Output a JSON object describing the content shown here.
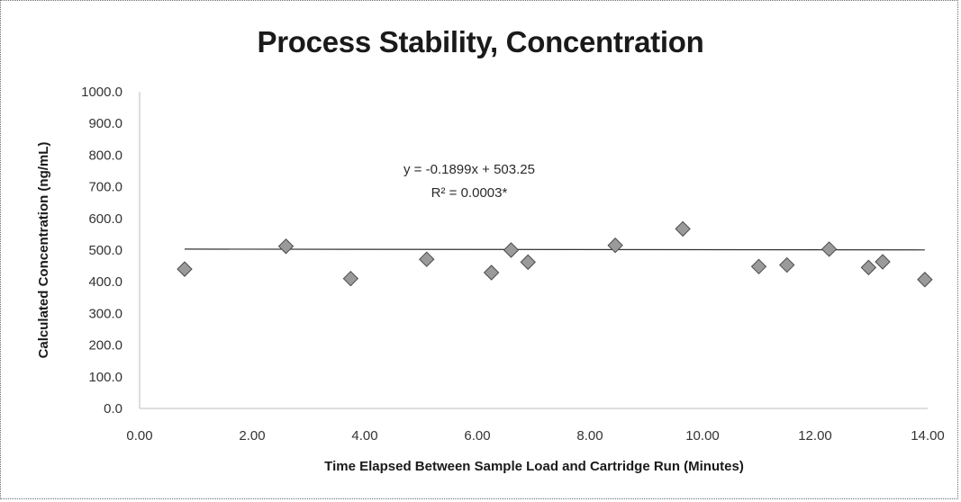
{
  "chart_data": {
    "type": "scatter",
    "title": "Process Stability, Concentration",
    "xlabel": "Time Elapsed Between Sample Load and Cartridge Run (Minutes)",
    "ylabel": "Calculated Concentration (ng/mL)",
    "xlim": [
      0,
      14
    ],
    "ylim": [
      0,
      1000
    ],
    "x_ticks": [
      "0.00",
      "2.00",
      "4.00",
      "6.00",
      "8.00",
      "10.00",
      "12.00",
      "14.00"
    ],
    "y_ticks": [
      "0.0",
      "100.0",
      "200.0",
      "300.0",
      "400.0",
      "500.0",
      "600.0",
      "700.0",
      "800.0",
      "900.0",
      "1000.0"
    ],
    "grid": false,
    "series": [
      {
        "points": [
          {
            "x": 0.8,
            "y": 440
          },
          {
            "x": 2.6,
            "y": 512
          },
          {
            "x": 3.75,
            "y": 410
          },
          {
            "x": 5.1,
            "y": 471
          },
          {
            "x": 6.25,
            "y": 429
          },
          {
            "x": 6.6,
            "y": 500
          },
          {
            "x": 6.9,
            "y": 462
          },
          {
            "x": 8.45,
            "y": 515
          },
          {
            "x": 9.65,
            "y": 567
          },
          {
            "x": 11.0,
            "y": 448
          },
          {
            "x": 11.5,
            "y": 453
          },
          {
            "x": 12.25,
            "y": 503
          },
          {
            "x": 12.95,
            "y": 445
          },
          {
            "x": 13.2,
            "y": 463
          },
          {
            "x": 13.95,
            "y": 407
          }
        ]
      }
    ],
    "trendline": {
      "slope": -0.1899,
      "intercept": 503.25
    },
    "annotations": [
      "y = -0.1899x + 503.25",
      "R² = 0.0003*"
    ]
  }
}
